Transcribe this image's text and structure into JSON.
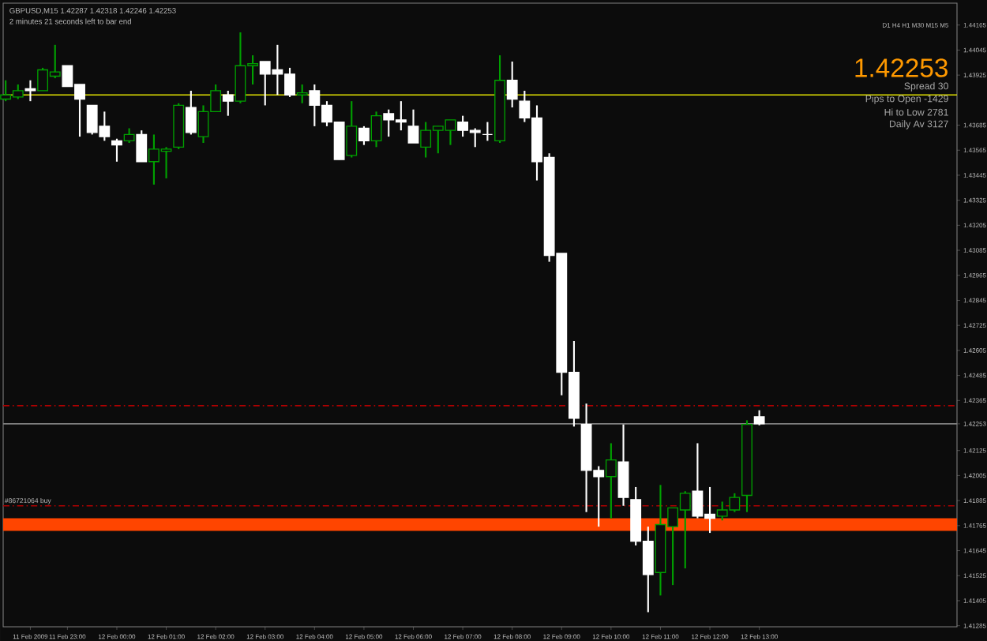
{
  "chart_data": {
    "type": "candlestick",
    "title": "GBPUSD,M15  1.42287 1.42318 1.42246 1.42253",
    "subtitle": "2 minutes 21 seconds left to bar end",
    "x": [
      "2009-02-11T21:45",
      "2009-02-11T22:00",
      "2009-02-11T22:15",
      "2009-02-11T22:30",
      "2009-02-11T22:45",
      "2009-02-11T23:00",
      "2009-02-11T23:15",
      "2009-02-11T23:30",
      "2009-02-11T23:45",
      "2009-02-12T00:00",
      "2009-02-12T00:15",
      "2009-02-12T00:30",
      "2009-02-12T00:45",
      "2009-02-12T01:00",
      "2009-02-12T01:15",
      "2009-02-12T01:30",
      "2009-02-12T01:45",
      "2009-02-12T02:00",
      "2009-02-12T02:15",
      "2009-02-12T02:30",
      "2009-02-12T02:45",
      "2009-02-12T03:00",
      "2009-02-12T03:15",
      "2009-02-12T03:30",
      "2009-02-12T03:45",
      "2009-02-12T04:00",
      "2009-02-12T04:15",
      "2009-02-12T04:30",
      "2009-02-12T04:45",
      "2009-02-12T05:00",
      "2009-02-12T05:15",
      "2009-02-12T05:30",
      "2009-02-12T05:45",
      "2009-02-12T06:00",
      "2009-02-12T06:15",
      "2009-02-12T06:30",
      "2009-02-12T06:45",
      "2009-02-12T07:00",
      "2009-02-12T07:15",
      "2009-02-12T07:30",
      "2009-02-12T07:45",
      "2009-02-12T08:00",
      "2009-02-12T08:15",
      "2009-02-12T08:30",
      "2009-02-12T08:45",
      "2009-02-12T09:00",
      "2009-02-12T09:15",
      "2009-02-12T09:30",
      "2009-02-12T09:45",
      "2009-02-12T10:00",
      "2009-02-12T10:15",
      "2009-02-12T10:30",
      "2009-02-12T10:45",
      "2009-02-12T11:00",
      "2009-02-12T11:15",
      "2009-02-12T11:30",
      "2009-02-12T11:45",
      "2009-02-12T12:00",
      "2009-02-12T12:15",
      "2009-02-12T12:30",
      "2009-02-12T12:45",
      "2009-02-12T13:00"
    ],
    "ohlc": [
      [
        1.4381,
        1.439,
        1.438,
        1.4383
      ],
      [
        1.4382,
        1.4388,
        1.4381,
        1.4385
      ],
      [
        1.4386,
        1.439,
        1.438,
        1.4385
      ],
      [
        1.4385,
        1.4396,
        1.4385,
        1.4395
      ],
      [
        1.4392,
        1.4407,
        1.4391,
        1.4394
      ],
      [
        1.4397,
        1.4397,
        1.4387,
        1.4387
      ],
      [
        1.4388,
        1.4388,
        1.4363,
        1.4381
      ],
      [
        1.4378,
        1.4378,
        1.4364,
        1.4365
      ],
      [
        1.4368,
        1.4375,
        1.4361,
        1.4363
      ],
      [
        1.4361,
        1.4362,
        1.4351,
        1.4359
      ],
      [
        1.4361,
        1.4367,
        1.436,
        1.4364
      ],
      [
        1.4364,
        1.4366,
        1.4351,
        1.4351
      ],
      [
        1.4351,
        1.4364,
        1.434,
        1.4357
      ],
      [
        1.4356,
        1.4358,
        1.4343,
        1.4357
      ],
      [
        1.4358,
        1.4379,
        1.4357,
        1.4378
      ],
      [
        1.4377,
        1.4385,
        1.4364,
        1.4365
      ],
      [
        1.4363,
        1.4378,
        1.436,
        1.4375
      ],
      [
        1.4375,
        1.4388,
        1.4375,
        1.4385
      ],
      [
        1.4383,
        1.4385,
        1.4373,
        1.438
      ],
      [
        1.438,
        1.4413,
        1.4379,
        1.4397
      ],
      [
        1.4397,
        1.4402,
        1.4388,
        1.4398
      ],
      [
        1.4399,
        1.4399,
        1.4378,
        1.4393
      ],
      [
        1.4395,
        1.4407,
        1.4383,
        1.4393
      ],
      [
        1.4393,
        1.4396,
        1.4382,
        1.4383
      ],
      [
        1.4383,
        1.4388,
        1.4379,
        1.4384
      ],
      [
        1.4385,
        1.4388,
        1.4368,
        1.4378
      ],
      [
        1.4378,
        1.438,
        1.4368,
        1.437
      ],
      [
        1.437,
        1.437,
        1.4352,
        1.4352
      ],
      [
        1.4354,
        1.438,
        1.4353,
        1.4368
      ],
      [
        1.4367,
        1.4368,
        1.4359,
        1.4361
      ],
      [
        1.4361,
        1.4375,
        1.4358,
        1.4373
      ],
      [
        1.4374,
        1.4376,
        1.4363,
        1.4371
      ],
      [
        1.4371,
        1.438,
        1.4366,
        1.437
      ],
      [
        1.4368,
        1.4376,
        1.436,
        1.436
      ],
      [
        1.4358,
        1.437,
        1.4353,
        1.4366
      ],
      [
        1.4366,
        1.4368,
        1.4355,
        1.4368
      ],
      [
        1.4366,
        1.4371,
        1.4359,
        1.4371
      ],
      [
        1.437,
        1.4373,
        1.4363,
        1.4366
      ],
      [
        1.4366,
        1.4367,
        1.4358,
        1.4365
      ],
      [
        1.4364,
        1.437,
        1.4361,
        1.4364
      ],
      [
        1.4361,
        1.4402,
        1.436,
        1.439
      ],
      [
        1.439,
        1.4399,
        1.4377,
        1.4381
      ],
      [
        1.438,
        1.4385,
        1.437,
        1.4372
      ],
      [
        1.4372,
        1.4378,
        1.4342,
        1.4351
      ],
      [
        1.4353,
        1.4355,
        1.4303,
        1.4306
      ],
      [
        1.4307,
        1.4307,
        1.4239,
        1.425
      ],
      [
        1.425,
        1.4265,
        1.4224,
        1.4228
      ],
      [
        1.4225,
        1.4235,
        1.4183,
        1.4203
      ],
      [
        1.4203,
        1.4205,
        1.4176,
        1.42
      ],
      [
        1.42,
        1.4216,
        1.418,
        1.4208
      ],
      [
        1.4207,
        1.4225,
        1.4186,
        1.419
      ],
      [
        1.4189,
        1.4195,
        1.4167,
        1.4169
      ],
      [
        1.4169,
        1.4176,
        1.4135,
        1.4153
      ],
      [
        1.4154,
        1.4196,
        1.4143,
        1.4177
      ],
      [
        1.4176,
        1.4185,
        1.4148,
        1.4185
      ],
      [
        1.4184,
        1.4193,
        1.4156,
        1.4192
      ],
      [
        1.4193,
        1.4216,
        1.418,
        1.4181
      ],
      [
        1.4182,
        1.4195,
        1.4173,
        1.418
      ],
      [
        1.4181,
        1.4188,
        1.4179,
        1.4184
      ],
      [
        1.4184,
        1.4192,
        1.4183,
        1.419
      ],
      [
        1.4191,
        1.4227,
        1.4183,
        1.4225
      ],
      [
        1.42287,
        1.42318,
        1.42246,
        1.42253
      ]
    ],
    "colors": [
      "#00a000",
      "#00a000",
      "#ffffff",
      "#00a000",
      "#00a000",
      "#ffffff",
      "#ffffff",
      "#ffffff",
      "#ffffff",
      "#ffffff",
      "#00a000",
      "#ffffff",
      "#00a000",
      "#00a000",
      "#00a000",
      "#ffffff",
      "#00a000",
      "#00a000",
      "#ffffff",
      "#00a000",
      "#00a000",
      "#ffffff",
      "#ffffff",
      "#ffffff",
      "#00a000",
      "#ffffff",
      "#ffffff",
      "#ffffff",
      "#00a000",
      "#ffffff",
      "#00a000",
      "#ffffff",
      "#ffffff",
      "#ffffff",
      "#00a000",
      "#00a000",
      "#00a000",
      "#ffffff",
      "#ffffff",
      "#ffffff",
      "#00a000",
      "#ffffff",
      "#ffffff",
      "#ffffff",
      "#ffffff",
      "#ffffff",
      "#ffffff",
      "#ffffff",
      "#ffffff",
      "#00a000",
      "#ffffff",
      "#ffffff",
      "#ffffff",
      "#00a000",
      "#00a000",
      "#00a000",
      "#ffffff",
      "#ffffff",
      "#00a000",
      "#00a000",
      "#00a000",
      "#ffffff"
    ],
    "xlim": [
      "2009-02-11T21:42",
      "2009-02-12T17:00"
    ],
    "ylim": [
      1.4128,
      1.4427
    ],
    "xticks": [
      {
        "value": "2009-02-11T22:15",
        "label": "11 Feb 2009"
      },
      {
        "value": "2009-02-11T23:00",
        "label": "11 Feb 23:00"
      },
      {
        "value": "2009-02-12T00:00",
        "label": "12 Feb 00:00"
      },
      {
        "value": "2009-02-12T01:00",
        "label": "12 Feb 01:00"
      },
      {
        "value": "2009-02-12T02:00",
        "label": "12 Feb 02:00"
      },
      {
        "value": "2009-02-12T03:00",
        "label": "12 Feb 03:00"
      },
      {
        "value": "2009-02-12T04:00",
        "label": "12 Feb 04:00"
      },
      {
        "value": "2009-02-12T05:00",
        "label": "12 Feb 05:00"
      },
      {
        "value": "2009-02-12T06:00",
        "label": "12 Feb 06:00"
      },
      {
        "value": "2009-02-12T07:00",
        "label": "12 Feb 07:00"
      },
      {
        "value": "2009-02-12T08:00",
        "label": "12 Feb 08:00"
      },
      {
        "value": "2009-02-12T09:00",
        "label": "12 Feb 09:00"
      },
      {
        "value": "2009-02-12T10:00",
        "label": "12 Feb 10:00"
      },
      {
        "value": "2009-02-12T11:00",
        "label": "12 Feb 11:00"
      },
      {
        "value": "2009-02-12T12:00",
        "label": "12 Feb 12:00"
      },
      {
        "value": "2009-02-12T13:00",
        "label": "12 Feb 13:00"
      }
    ],
    "yticks": [
      1.41285,
      1.41405,
      1.41525,
      1.41645,
      1.41765,
      1.41885,
      1.42005,
      1.42125,
      {
        "value": 1.42253,
        "label": "1.42253"
      },
      1.42365,
      1.42485,
      1.42605,
      1.42725,
      1.42845,
      1.42965,
      1.43085,
      1.43205,
      1.43325,
      1.43445,
      1.43565,
      1.43685,
      1.43925,
      1.44045,
      1.44165
    ],
    "ref_lines": [
      {
        "axis": "y",
        "value": 1.4234,
        "color": "#b00000",
        "line_style": "dashed"
      },
      {
        "axis": "y",
        "value": 1.4186,
        "label": "#86721064 buy",
        "color": "#b00000",
        "line_style": "dashed"
      },
      {
        "axis": "y",
        "value": 1.42253,
        "color": "#808080",
        "line_style": "solid"
      },
      {
        "axis": "y",
        "value": 1.4383,
        "color": "#e0e000",
        "line_style": "solid"
      }
    ],
    "bands": [
      {
        "axis": "y",
        "from": 1.4174,
        "to": 1.418,
        "color": "#ff4500"
      }
    ],
    "annotations": [
      "D1 H4 H1 M30 M15 M5",
      "1.42253",
      "Spread 30",
      "Pips to Open -1429",
      "Hi to Low 2781",
      "Daily Av 3127"
    ]
  }
}
